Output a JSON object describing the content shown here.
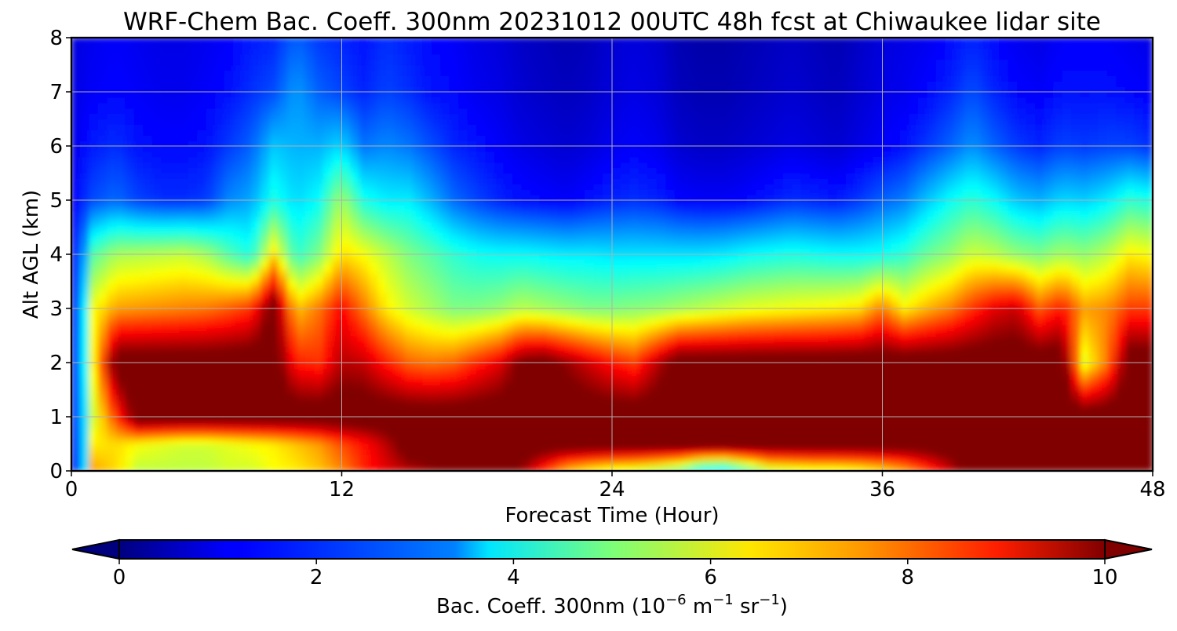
{
  "chart_data": {
    "type": "heatmap",
    "subtype": "filled-contour",
    "title": "WRF-Chem Bac. Coeff. 300nm  20231012 00UTC 48h fcst at Chiwaukee lidar site",
    "xlabel": "Forecast Time (Hour)",
    "ylabel": "Alt AGL (km)",
    "xlim": [
      0,
      48
    ],
    "ylim": [
      0,
      8
    ],
    "x_ticks": [
      0,
      12,
      24,
      36,
      48
    ],
    "y_ticks": [
      0,
      1,
      2,
      3,
      4,
      5,
      6,
      7,
      8
    ],
    "grid": true,
    "colormap": "jet",
    "colorbar": {
      "orientation": "horizontal",
      "placement": "bottom",
      "range": [
        0,
        10
      ],
      "extend": "both",
      "ticks": [
        0,
        2,
        4,
        6,
        8,
        10
      ],
      "label_main": "Bac. Coeff. 300nm  (10",
      "label_exp1": "−6",
      "label_unit_m": " m",
      "label_exp2": "−1",
      "label_unit_sr": " sr",
      "label_exp3": "−1",
      "label_close": ")"
    },
    "x": [
      0,
      0.5,
      1,
      2,
      3,
      4,
      5,
      6,
      7,
      8,
      9,
      10,
      11,
      12,
      13,
      14,
      15,
      16,
      17,
      18,
      19,
      20,
      21,
      22,
      23,
      24,
      25,
      26,
      27,
      28,
      29,
      30,
      31,
      32,
      33,
      34,
      35,
      36,
      37,
      38,
      39,
      40,
      41,
      42,
      43,
      44,
      45,
      46,
      47,
      48
    ],
    "z_rows": [
      {
        "alt": 8.0,
        "values": [
          0.9,
          1.0,
          1.1,
          1.2,
          1.1,
          1.0,
          1.0,
          1.1,
          1.2,
          1.5,
          1.6,
          2.2,
          1.8,
          1.6,
          1.4,
          1.7,
          1.5,
          1.3,
          1.2,
          1.0,
          0.9,
          0.7,
          0.6,
          0.5,
          0.6,
          0.8,
          0.9,
          0.8,
          0.5,
          0.4,
          0.4,
          0.5,
          0.6,
          0.7,
          0.6,
          0.5,
          0.7,
          0.9,
          1.0,
          1.1,
          1.3,
          1.6,
          1.3,
          1.1,
          1.0,
          1.2,
          1.2,
          1.2,
          1.1,
          1.0
        ]
      },
      {
        "alt": 7.0,
        "values": [
          0.9,
          1.1,
          1.2,
          1.3,
          1.2,
          1.1,
          1.1,
          1.2,
          1.4,
          1.7,
          2.0,
          2.8,
          2.2,
          1.9,
          1.6,
          1.9,
          1.7,
          1.4,
          1.3,
          1.1,
          1.0,
          0.8,
          0.7,
          0.6,
          0.7,
          0.9,
          1.0,
          0.9,
          0.6,
          0.5,
          0.5,
          0.6,
          0.7,
          0.8,
          0.7,
          0.6,
          0.8,
          1.0,
          1.1,
          1.3,
          1.6,
          2.0,
          1.6,
          1.3,
          1.2,
          1.4,
          1.4,
          1.4,
          1.3,
          1.2
        ]
      },
      {
        "alt": 6.0,
        "values": [
          0.9,
          1.3,
          1.5,
          1.7,
          1.4,
          1.3,
          1.3,
          1.4,
          1.8,
          2.2,
          3.2,
          3.0,
          3.0,
          3.4,
          2.4,
          2.6,
          2.4,
          2.0,
          1.6,
          1.4,
          1.2,
          1.0,
          0.9,
          0.8,
          0.9,
          1.1,
          1.2,
          1.1,
          0.8,
          0.7,
          0.7,
          0.8,
          0.9,
          1.0,
          0.9,
          0.8,
          1.0,
          1.2,
          1.4,
          1.8,
          2.2,
          2.7,
          2.2,
          1.8,
          1.6,
          1.9,
          1.8,
          1.9,
          1.9,
          1.7
        ]
      },
      {
        "alt": 5.0,
        "values": [
          1.0,
          1.6,
          2.0,
          2.3,
          1.9,
          1.7,
          1.7,
          1.8,
          2.6,
          2.9,
          4.0,
          3.4,
          3.8,
          5.4,
          4.0,
          3.6,
          3.6,
          3.0,
          2.3,
          1.9,
          1.6,
          1.4,
          1.3,
          1.2,
          1.4,
          1.6,
          1.7,
          1.6,
          1.3,
          1.2,
          1.2,
          1.3,
          1.5,
          1.7,
          1.6,
          1.5,
          1.8,
          2.2,
          2.5,
          3.2,
          3.8,
          4.2,
          3.8,
          3.2,
          3.0,
          3.4,
          3.3,
          3.6,
          4.2,
          4.0
        ]
      },
      {
        "alt": 4.0,
        "values": [
          1.1,
          2.4,
          4.6,
          5.4,
          5.5,
          5.6,
          5.7,
          5.4,
          4.6,
          4.0,
          6.5,
          4.2,
          5.0,
          6.6,
          6.2,
          5.6,
          5.0,
          4.6,
          4.2,
          3.9,
          3.8,
          3.8,
          3.7,
          3.6,
          3.6,
          3.5,
          3.5,
          3.5,
          3.5,
          3.5,
          3.6,
          3.8,
          3.9,
          4.0,
          3.9,
          3.8,
          3.8,
          3.9,
          4.2,
          4.8,
          5.2,
          5.8,
          5.6,
          5.2,
          5.0,
          5.4,
          5.2,
          5.6,
          6.4,
          6.2
        ]
      },
      {
        "alt": 3.0,
        "values": [
          1.1,
          3.0,
          6.2,
          7.2,
          7.3,
          7.4,
          7.5,
          7.6,
          7.9,
          8.3,
          10.5,
          6.8,
          7.6,
          8.8,
          7.6,
          6.4,
          5.8,
          5.4,
          5.0,
          5.0,
          5.2,
          5.6,
          5.4,
          5.2,
          5.0,
          5.0,
          5.1,
          5.2,
          5.4,
          5.6,
          5.8,
          6.0,
          6.1,
          6.2,
          6.3,
          6.4,
          6.6,
          7.6,
          6.4,
          7.0,
          7.5,
          8.3,
          9.0,
          9.3,
          7.9,
          8.6,
          7.2,
          7.4,
          8.2,
          8.2
        ]
      },
      {
        "alt": 2.0,
        "values": [
          1.3,
          3.0,
          6.4,
          10.6,
          10.6,
          10.6,
          10.6,
          10.6,
          10.6,
          10.6,
          10.6,
          8.5,
          8.3,
          9.5,
          9.3,
          8.5,
          7.8,
          7.6,
          7.8,
          8.4,
          9.0,
          10.2,
          10.4,
          9.8,
          9.2,
          8.6,
          8.2,
          9.4,
          10.6,
          10.6,
          10.6,
          10.6,
          10.6,
          10.6,
          10.6,
          10.6,
          10.6,
          10.6,
          10.6,
          10.6,
          10.6,
          10.6,
          10.6,
          10.6,
          10.6,
          10.6,
          6.0,
          7.6,
          10.6,
          10.6
        ]
      },
      {
        "alt": 1.0,
        "values": [
          1.4,
          2.8,
          5.8,
          8.2,
          10.6,
          10.6,
          10.6,
          10.6,
          10.6,
          10.6,
          10.6,
          10.6,
          10.6,
          10.6,
          10.6,
          10.6,
          10.6,
          10.6,
          10.6,
          10.6,
          10.6,
          10.6,
          10.6,
          10.6,
          10.6,
          10.6,
          10.6,
          10.6,
          10.6,
          10.6,
          10.6,
          10.6,
          10.6,
          10.6,
          10.6,
          10.6,
          10.6,
          10.6,
          10.6,
          10.6,
          10.6,
          10.6,
          10.6,
          10.6,
          10.6,
          10.6,
          10.6,
          10.6,
          10.6,
          10.6
        ]
      },
      {
        "alt": 0.5,
        "values": [
          1.4,
          2.6,
          6.4,
          6.6,
          6.2,
          6.0,
          5.8,
          5.8,
          6.0,
          6.2,
          6.4,
          6.8,
          7.2,
          8.0,
          8.6,
          9.4,
          10.6,
          10.6,
          10.6,
          10.6,
          10.6,
          10.6,
          10.6,
          10.6,
          10.6,
          10.6,
          10.6,
          10.6,
          10.6,
          10.6,
          10.6,
          10.6,
          10.6,
          10.6,
          10.6,
          10.6,
          10.6,
          10.6,
          10.6,
          10.6,
          10.6,
          10.6,
          10.6,
          10.6,
          10.6,
          10.6,
          10.6,
          10.6,
          10.6,
          10.6
        ]
      },
      {
        "alt": 0.0,
        "values": [
          1.3,
          2.4,
          7.2,
          6.6,
          5.6,
          5.6,
          5.6,
          5.6,
          5.8,
          5.8,
          6.2,
          6.4,
          6.8,
          7.4,
          8.4,
          9.0,
          9.4,
          9.8,
          10.3,
          10.6,
          10.6,
          9.8,
          8.2,
          6.8,
          6.2,
          5.8,
          5.6,
          5.2,
          4.6,
          3.2,
          3.0,
          4.2,
          5.4,
          5.6,
          5.8,
          5.8,
          6.0,
          6.4,
          7.0,
          8.0,
          9.2,
          10.6,
          10.6,
          10.6,
          10.6,
          10.6,
          10.6,
          10.6,
          10.6,
          10.6
        ]
      }
    ]
  }
}
